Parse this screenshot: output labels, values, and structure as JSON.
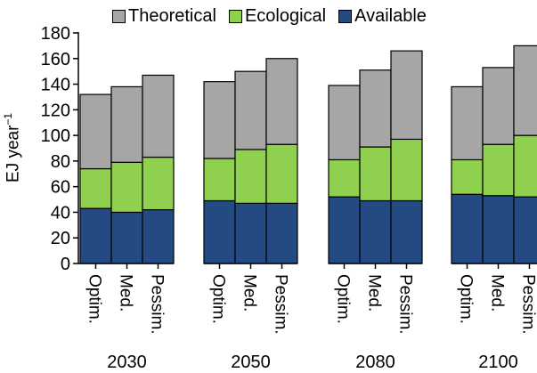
{
  "chart_data": {
    "type": "bar",
    "stacked": true,
    "groups": [
      "2030",
      "2050",
      "2080",
      "2100"
    ],
    "scenarios": [
      "Optim.",
      "Med.",
      "Pessim."
    ],
    "series": [
      {
        "name": "Available",
        "color": "#234a82",
        "values": [
          [
            43,
            40,
            42
          ],
          [
            49,
            47,
            47
          ],
          [
            52,
            49,
            49
          ],
          [
            54,
            53,
            52
          ]
        ]
      },
      {
        "name": "Ecological",
        "color": "#8fd14f",
        "values": [
          [
            74,
            79,
            83
          ],
          [
            82,
            89,
            93
          ],
          [
            81,
            91,
            97
          ],
          [
            81,
            93,
            100
          ]
        ]
      },
      {
        "name": "Theoretical",
        "color": "#a6a6a6",
        "values": [
          [
            132,
            138,
            147
          ],
          [
            142,
            150,
            160
          ],
          [
            139,
            151,
            166
          ],
          [
            138,
            153,
            170
          ]
        ]
      }
    ],
    "legend_order": [
      "Theoretical",
      "Ecological",
      "Available"
    ],
    "ylabel_text": "EJ year",
    "ylabel_sup": "−1",
    "ylim": [
      0,
      180
    ],
    "yticks": [
      0,
      20,
      40,
      60,
      80,
      100,
      120,
      140,
      160,
      180
    ],
    "grid": false,
    "legend_position": "top"
  }
}
